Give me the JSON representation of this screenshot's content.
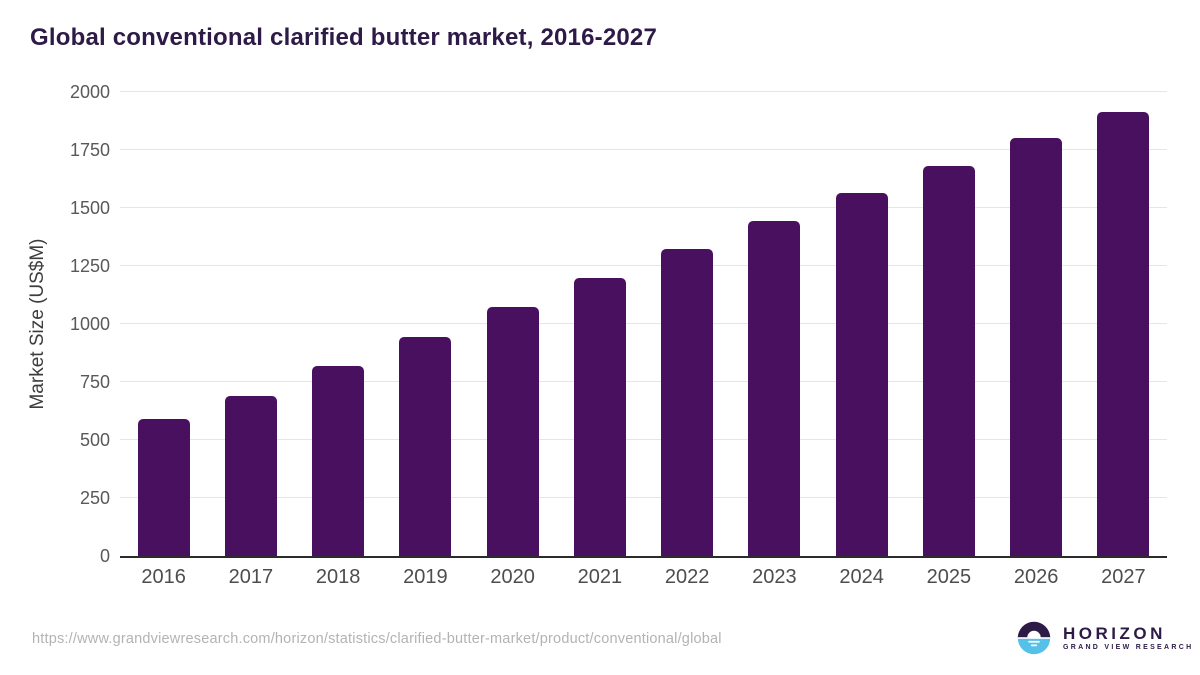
{
  "chart_data": {
    "type": "bar",
    "title": "Global conventional clarified butter market, 2016-2027",
    "categories": [
      "2016",
      "2017",
      "2018",
      "2019",
      "2020",
      "2021",
      "2022",
      "2023",
      "2024",
      "2025",
      "2026",
      "2027"
    ],
    "values": [
      590,
      690,
      820,
      945,
      1075,
      1200,
      1325,
      1445,
      1565,
      1680,
      1800,
      1915
    ],
    "xlabel": "",
    "ylabel": "Market Size (US$M)",
    "ylim": [
      0,
      2000
    ],
    "yticks": [
      0,
      250,
      500,
      750,
      1000,
      1250,
      1500,
      1750,
      2000
    ],
    "grid": "horizontal",
    "legend": "none",
    "bar_color": "#491060",
    "axis_line_color": "#2b2b2b",
    "gridline_color": "#e6e6e6"
  },
  "footer": {
    "source_url": "https://www.grandviewresearch.com/horizon/statistics/clarified-butter-market/product/conventional/global",
    "logo": {
      "icon": "horizon-sunset-circle-icon",
      "primary": "HORIZON",
      "secondary": "GRAND VIEW RESEARCH",
      "primary_color": "#2d1a47",
      "accent_color": "#56c1e8"
    }
  }
}
